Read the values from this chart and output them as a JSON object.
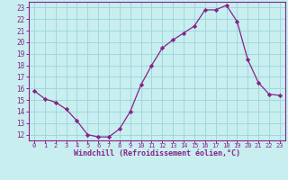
{
  "x": [
    0,
    1,
    2,
    3,
    4,
    5,
    6,
    7,
    8,
    9,
    10,
    11,
    12,
    13,
    14,
    15,
    16,
    17,
    18,
    19,
    20,
    21,
    22,
    23
  ],
  "y": [
    15.8,
    15.1,
    14.8,
    14.2,
    13.2,
    12.0,
    11.8,
    11.8,
    12.5,
    14.0,
    16.3,
    18.0,
    19.5,
    20.2,
    20.8,
    21.4,
    22.8,
    22.8,
    23.2,
    21.8,
    18.5,
    16.5,
    15.5,
    15.4
  ],
  "line_color": "#882288",
  "marker": "D",
  "marker_size": 2.2,
  "bg_color": "#c8eef0",
  "grid_color": "#a0d8dc",
  "xlabel": "Windchill (Refroidissement éolien,°C)",
  "xlabel_color": "#882288",
  "tick_color": "#882288",
  "xlim": [
    -0.5,
    23.5
  ],
  "ylim": [
    11.5,
    23.5
  ],
  "yticks": [
    12,
    13,
    14,
    15,
    16,
    17,
    18,
    19,
    20,
    21,
    22,
    23
  ],
  "xticks": [
    0,
    1,
    2,
    3,
    4,
    5,
    6,
    7,
    8,
    9,
    10,
    11,
    12,
    13,
    14,
    15,
    16,
    17,
    18,
    19,
    20,
    21,
    22,
    23
  ]
}
